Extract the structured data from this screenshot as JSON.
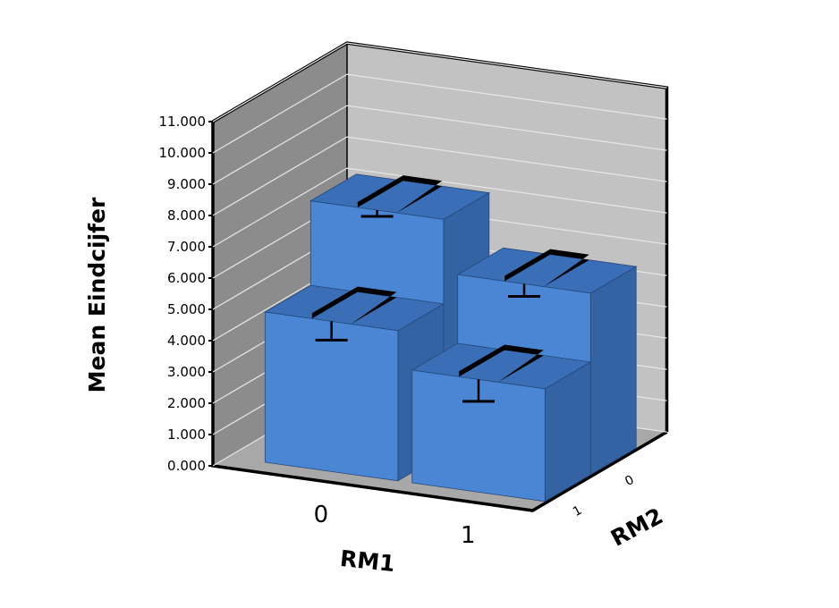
{
  "chart_data": {
    "type": "bar",
    "subtype": "3d-clustered",
    "ylabel": "Mean Eindcijfer",
    "xlabel": "RM1",
    "zlabel": "RM2",
    "ylim": [
      0,
      11
    ],
    "y_ticks": [
      "0.000",
      "1.000",
      "2.000",
      "3.000",
      "4.000",
      "5.000",
      "6.000",
      "7.000",
      "8.000",
      "9.000",
      "10.000",
      "11.000"
    ],
    "categories": [
      "0",
      "1"
    ],
    "depth_categories": [
      "0",
      "1"
    ],
    "series": [
      {
        "name": "0",
        "values": [
          7.5,
          5.8
        ],
        "error_low": [
          7.3,
          5.4
        ]
      },
      {
        "name": "1",
        "values": [
          4.8,
          3.6
        ],
        "error_low": [
          4.2,
          2.9
        ]
      }
    ],
    "colors": {
      "bar_front": "#4a86d3",
      "bar_side": "#3463a3",
      "bar_top": "#3a6fb8",
      "wall_back": "#c2c2c2",
      "wall_left": "#8c8c8c",
      "floor": "#a8a8a8",
      "error_bar": "#000000"
    },
    "grid": true
  }
}
